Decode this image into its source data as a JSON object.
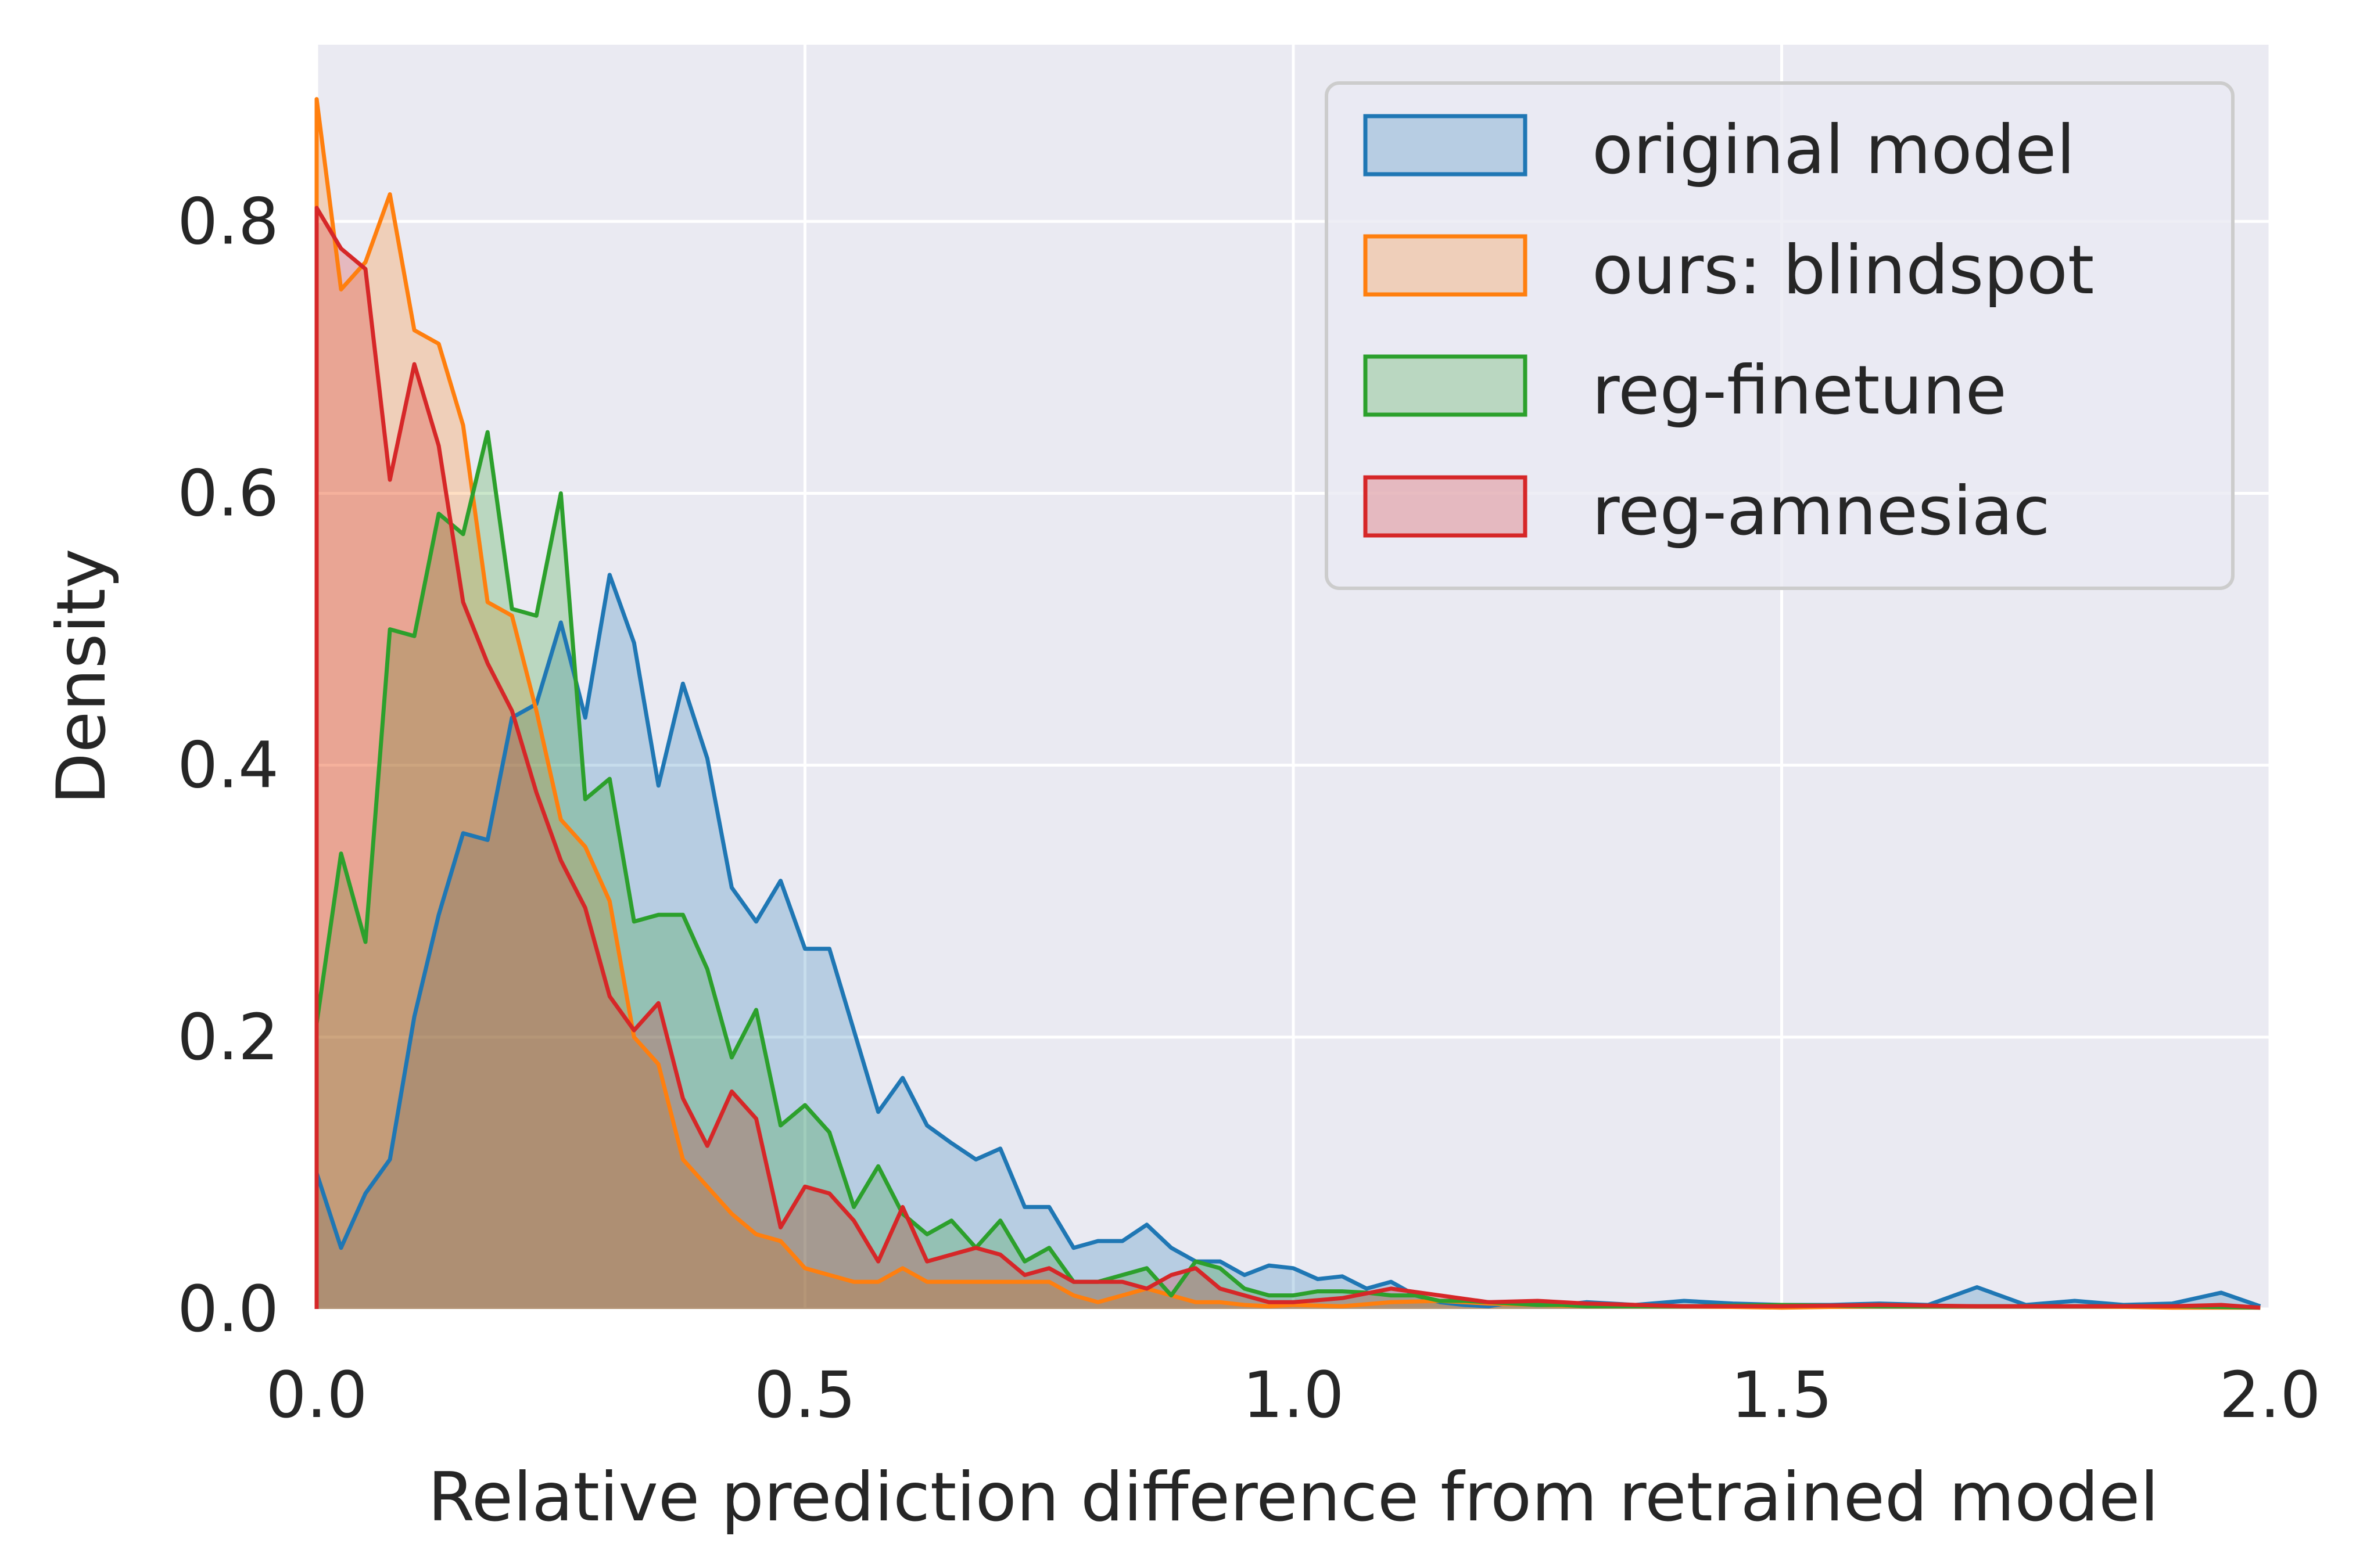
{
  "chart_data": {
    "type": "area",
    "title": "",
    "xlabel": "Relative prediction difference from retrained model",
    "ylabel": "Density",
    "xlim": [
      0,
      2.0
    ],
    "ylim": [
      0,
      0.93
    ],
    "x_ticks": [
      0.0,
      0.5,
      1.0,
      1.5,
      2.0
    ],
    "x_tick_labels": [
      "0.0",
      "0.5",
      "1.0",
      "1.5",
      "2.0"
    ],
    "y_ticks": [
      0.0,
      0.2,
      0.4,
      0.6,
      0.8
    ],
    "y_tick_labels": [
      "0.0",
      "0.2",
      "0.4",
      "0.6",
      "0.8"
    ],
    "grid": true,
    "background": "#eaeaf2",
    "legend_position": "top-right",
    "series": [
      {
        "name": "original model",
        "color": "#1f77b4",
        "fill_opacity": 0.25,
        "x": [
          0.0,
          0.025,
          0.05,
          0.075,
          0.1,
          0.125,
          0.15,
          0.175,
          0.2,
          0.225,
          0.25,
          0.275,
          0.3,
          0.325,
          0.35,
          0.375,
          0.4,
          0.425,
          0.45,
          0.475,
          0.5,
          0.525,
          0.55,
          0.575,
          0.6,
          0.625,
          0.65,
          0.675,
          0.7,
          0.725,
          0.75,
          0.775,
          0.8,
          0.825,
          0.85,
          0.875,
          0.9,
          0.925,
          0.95,
          0.975,
          1.0,
          1.025,
          1.05,
          1.075,
          1.1,
          1.125,
          1.15,
          1.175,
          1.2,
          1.225,
          1.25,
          1.275,
          1.3,
          1.35,
          1.4,
          1.45,
          1.5,
          1.55,
          1.6,
          1.65,
          1.7,
          1.75,
          1.8,
          1.85,
          1.9,
          1.95,
          1.99
        ],
        "y": [
          0.1,
          0.045,
          0.085,
          0.11,
          0.215,
          0.29,
          0.35,
          0.345,
          0.435,
          0.445,
          0.505,
          0.435,
          0.54,
          0.49,
          0.385,
          0.46,
          0.405,
          0.31,
          0.285,
          0.315,
          0.265,
          0.265,
          0.205,
          0.145,
          0.17,
          0.135,
          0.122,
          0.11,
          0.118,
          0.075,
          0.075,
          0.045,
          0.05,
          0.05,
          0.062,
          0.045,
          0.035,
          0.035,
          0.025,
          0.032,
          0.03,
          0.022,
          0.024,
          0.015,
          0.02,
          0.01,
          0.005,
          0.003,
          0.002,
          0.005,
          0.004,
          0.003,
          0.005,
          0.003,
          0.006,
          0.004,
          0.003,
          0.003,
          0.004,
          0.003,
          0.016,
          0.003,
          0.006,
          0.003,
          0.004,
          0.012,
          0.002
        ]
      },
      {
        "name": "ours: blindspot",
        "color": "#ff7f0e",
        "fill_opacity": 0.25,
        "x": [
          0.0,
          0.025,
          0.05,
          0.075,
          0.1,
          0.125,
          0.15,
          0.175,
          0.2,
          0.225,
          0.25,
          0.275,
          0.3,
          0.325,
          0.35,
          0.375,
          0.4,
          0.425,
          0.45,
          0.475,
          0.5,
          0.525,
          0.55,
          0.575,
          0.6,
          0.625,
          0.65,
          0.675,
          0.7,
          0.725,
          0.75,
          0.775,
          0.8,
          0.825,
          0.85,
          0.875,
          0.9,
          0.925,
          0.95,
          0.975,
          1.0,
          1.05,
          1.1,
          1.15,
          1.2,
          1.25,
          1.3,
          1.4,
          1.5,
          1.6,
          1.7,
          1.8,
          1.9,
          1.99
        ],
        "y": [
          0.89,
          0.75,
          0.77,
          0.82,
          0.72,
          0.71,
          0.65,
          0.52,
          0.51,
          0.44,
          0.36,
          0.34,
          0.3,
          0.2,
          0.18,
          0.11,
          0.09,
          0.07,
          0.055,
          0.05,
          0.03,
          0.025,
          0.02,
          0.02,
          0.03,
          0.02,
          0.02,
          0.02,
          0.02,
          0.02,
          0.02,
          0.01,
          0.005,
          0.01,
          0.015,
          0.01,
          0.005,
          0.005,
          0.003,
          0.002,
          0.003,
          0.002,
          0.005,
          0.006,
          0.004,
          0.003,
          0.002,
          0.002,
          0.001,
          0.002,
          0.002,
          0.002,
          0.001,
          0.001
        ]
      },
      {
        "name": "reg-finetune",
        "color": "#2ca02c",
        "fill_opacity": 0.25,
        "x": [
          0.0,
          0.025,
          0.05,
          0.075,
          0.1,
          0.125,
          0.15,
          0.175,
          0.2,
          0.225,
          0.25,
          0.275,
          0.3,
          0.325,
          0.35,
          0.375,
          0.4,
          0.425,
          0.45,
          0.475,
          0.5,
          0.525,
          0.55,
          0.575,
          0.6,
          0.625,
          0.65,
          0.675,
          0.7,
          0.725,
          0.75,
          0.775,
          0.8,
          0.825,
          0.85,
          0.875,
          0.9,
          0.925,
          0.95,
          0.975,
          1.0,
          1.025,
          1.05,
          1.075,
          1.1,
          1.125,
          1.15,
          1.175,
          1.2,
          1.225,
          1.25,
          1.275,
          1.3,
          1.4,
          1.5,
          1.6,
          1.7,
          1.8,
          1.9,
          1.99
        ],
        "y": [
          0.21,
          0.335,
          0.27,
          0.5,
          0.495,
          0.585,
          0.57,
          0.645,
          0.515,
          0.51,
          0.6,
          0.375,
          0.39,
          0.285,
          0.29,
          0.29,
          0.25,
          0.185,
          0.22,
          0.135,
          0.15,
          0.13,
          0.075,
          0.105,
          0.07,
          0.055,
          0.065,
          0.045,
          0.065,
          0.035,
          0.045,
          0.02,
          0.02,
          0.025,
          0.03,
          0.01,
          0.035,
          0.03,
          0.015,
          0.01,
          0.01,
          0.013,
          0.013,
          0.012,
          0.01,
          0.01,
          0.006,
          0.006,
          0.005,
          0.004,
          0.003,
          0.003,
          0.002,
          0.002,
          0.003,
          0.002,
          0.002,
          0.002,
          0.002,
          0.001
        ]
      },
      {
        "name": "reg-amnesiac",
        "color": "#d62728",
        "fill_opacity": 0.25,
        "x": [
          0.0,
          0.025,
          0.05,
          0.075,
          0.1,
          0.125,
          0.15,
          0.175,
          0.2,
          0.225,
          0.25,
          0.275,
          0.3,
          0.325,
          0.35,
          0.375,
          0.4,
          0.425,
          0.45,
          0.475,
          0.5,
          0.525,
          0.55,
          0.575,
          0.6,
          0.625,
          0.65,
          0.675,
          0.7,
          0.725,
          0.75,
          0.775,
          0.8,
          0.825,
          0.85,
          0.875,
          0.9,
          0.925,
          0.95,
          0.975,
          1.0,
          1.05,
          1.1,
          1.15,
          1.2,
          1.25,
          1.3,
          1.4,
          1.5,
          1.6,
          1.7,
          1.8,
          1.9,
          1.95,
          1.99
        ],
        "y": [
          0.81,
          0.78,
          0.765,
          0.61,
          0.695,
          0.635,
          0.52,
          0.475,
          0.44,
          0.38,
          0.33,
          0.295,
          0.23,
          0.205,
          0.225,
          0.155,
          0.12,
          0.16,
          0.14,
          0.06,
          0.09,
          0.085,
          0.065,
          0.035,
          0.075,
          0.035,
          0.04,
          0.045,
          0.04,
          0.025,
          0.03,
          0.02,
          0.02,
          0.02,
          0.015,
          0.025,
          0.03,
          0.015,
          0.01,
          0.005,
          0.005,
          0.008,
          0.015,
          0.01,
          0.005,
          0.006,
          0.004,
          0.002,
          0.002,
          0.003,
          0.002,
          0.002,
          0.002,
          0.003,
          0.001
        ]
      }
    ]
  }
}
